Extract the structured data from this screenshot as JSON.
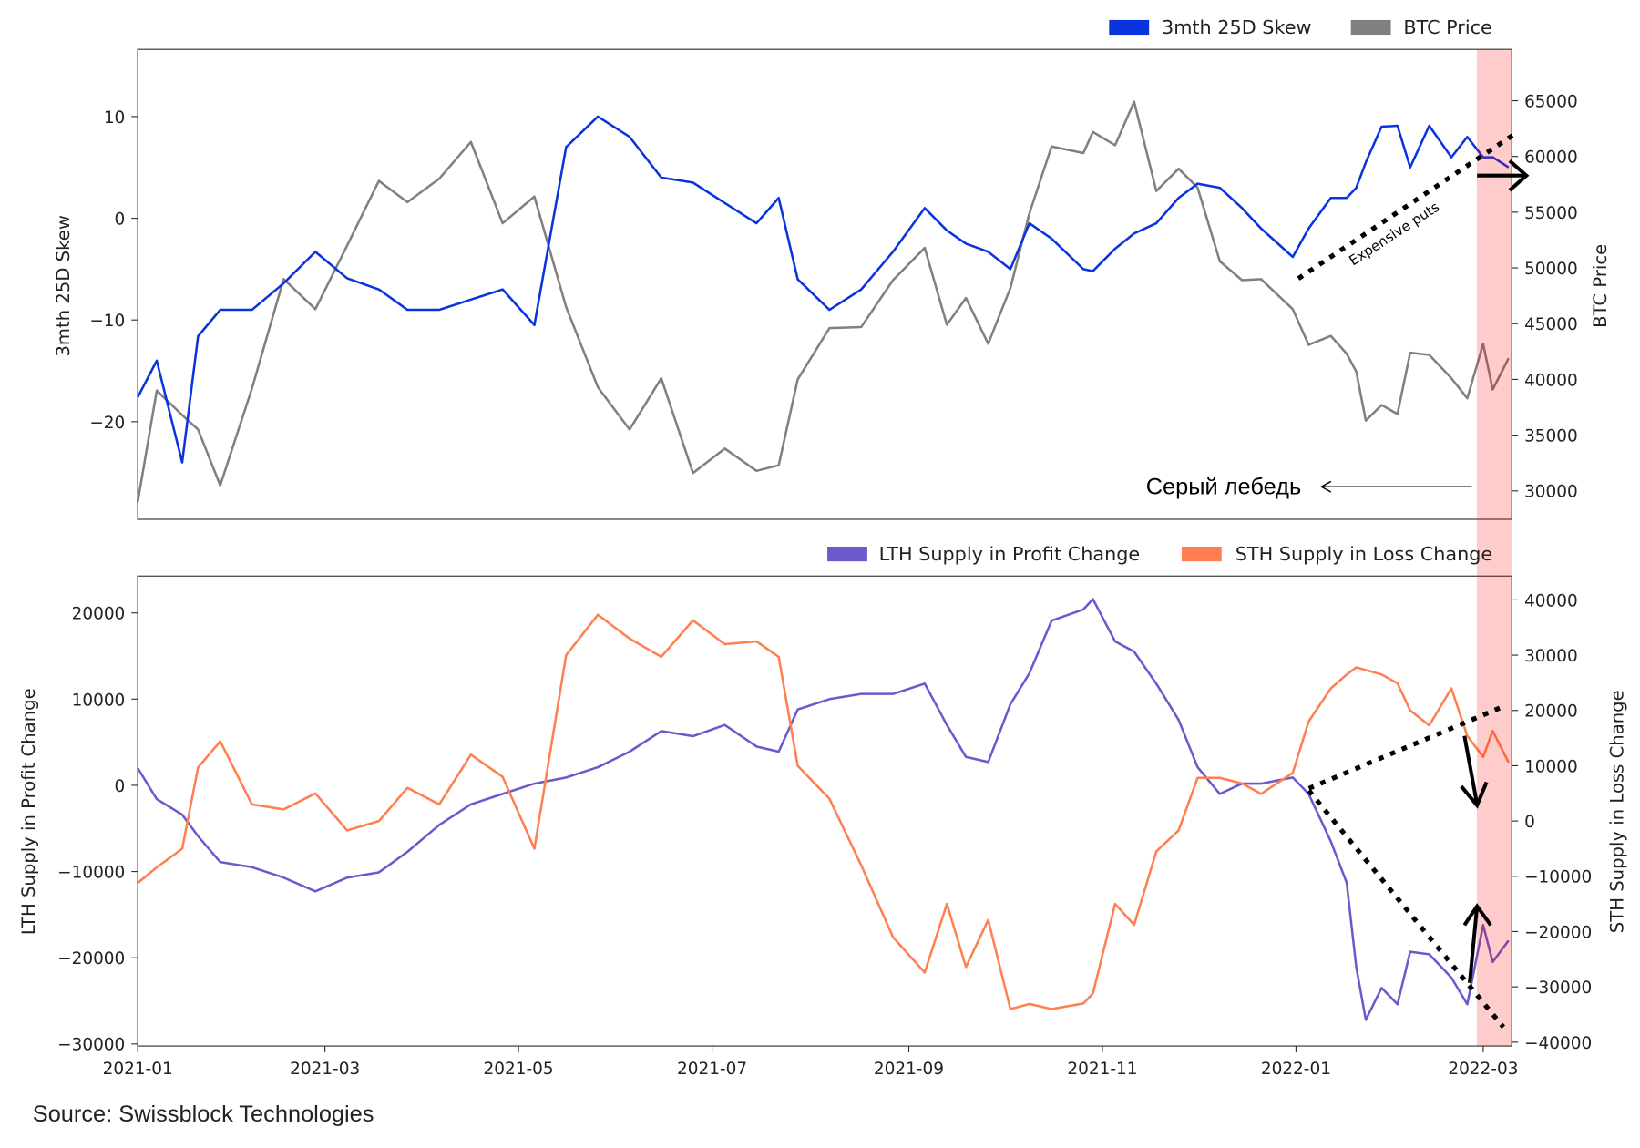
{
  "source": "Source: Swissblock Technologies",
  "colors": {
    "skew": "#0a33e0",
    "btc": "#808080",
    "lth": "#6a5acd",
    "sth": "#ff7f50",
    "band": "#ff0000"
  },
  "x_ticks": [
    "2021-01",
    "2021-03",
    "2021-05",
    "2021-07",
    "2021-09",
    "2021-11",
    "2022-01",
    "2022-03"
  ],
  "x_range": [
    "2021-01-01",
    "2022-03-10"
  ],
  "highlight_band": [
    "2022-02-27",
    "2022-03-10"
  ],
  "annotations": {
    "expensive_puts": "Expensive puts",
    "grey_swan": "Серый лебедь"
  },
  "chart_data": [
    {
      "type": "line",
      "legend": [
        "3mth 25D Skew",
        "BTC Price"
      ],
      "legend_position": "top-right",
      "ylabel": "3mth 25D Skew",
      "ylabel_right": "BTC Price",
      "ylim": [
        -29.6,
        16.6
      ],
      "ylim_right": [
        27450,
        69600
      ],
      "yticks": [
        {
          "v": 10,
          "label": "10"
        },
        {
          "v": 0,
          "label": "0"
        },
        {
          "v": -10,
          "label": "−10"
        },
        {
          "v": -20,
          "label": "−20"
        }
      ],
      "yticks_right": [
        {
          "v": 65000,
          "label": "65000"
        },
        {
          "v": 60000,
          "label": "60000"
        },
        {
          "v": 55000,
          "label": "55000"
        },
        {
          "v": 50000,
          "label": "50000"
        },
        {
          "v": 45000,
          "label": "45000"
        },
        {
          "v": 40000,
          "label": "40000"
        },
        {
          "v": 35000,
          "label": "35000"
        },
        {
          "v": 30000,
          "label": "30000"
        }
      ],
      "grid": false,
      "x": [
        "2021-01-01",
        "2021-01-07",
        "2021-01-15",
        "2021-01-20",
        "2021-01-27",
        "2021-02-06",
        "2021-02-16",
        "2021-02-26",
        "2021-03-08",
        "2021-03-18",
        "2021-03-27",
        "2021-04-06",
        "2021-04-16",
        "2021-04-26",
        "2021-05-06",
        "2021-05-16",
        "2021-05-26",
        "2021-06-05",
        "2021-06-15",
        "2021-06-25",
        "2021-07-05",
        "2021-07-15",
        "2021-07-22",
        "2021-07-28",
        "2021-08-07",
        "2021-08-17",
        "2021-08-27",
        "2021-09-06",
        "2021-09-13",
        "2021-09-19",
        "2021-09-26",
        "2021-10-03",
        "2021-10-09",
        "2021-10-16",
        "2021-10-26",
        "2021-10-29",
        "2021-11-05",
        "2021-11-11",
        "2021-11-18",
        "2021-11-25",
        "2021-12-01",
        "2021-12-08",
        "2021-12-15",
        "2021-12-21",
        "2021-12-31",
        "2022-01-05",
        "2022-01-12",
        "2022-01-17",
        "2022-01-20",
        "2022-01-23",
        "2022-01-28",
        "2022-02-02",
        "2022-02-06",
        "2022-02-12",
        "2022-02-19",
        "2022-02-24",
        "2022-03-01",
        "2022-03-04",
        "2022-03-09"
      ],
      "series": [
        {
          "name": "3mth 25D Skew",
          "axis": "left",
          "values": [
            -17.6,
            -14,
            -24,
            -11.6,
            -9,
            -9,
            -6.4,
            -3.3,
            -5.9,
            -7,
            -9,
            -9,
            -8,
            -7,
            -10.5,
            7,
            10,
            8,
            4,
            3.5,
            1.5,
            -0.5,
            2,
            -6,
            -9,
            -7,
            -3.3,
            1,
            -1.2,
            -2.5,
            -3.3,
            -5,
            -0.5,
            -2,
            -5,
            -5.2,
            -3,
            -1.5,
            -0.5,
            2,
            3.4,
            3,
            1,
            -1,
            -3.8,
            -1,
            2,
            2,
            3,
            5.5,
            9,
            9.1,
            5,
            9.1,
            6,
            8,
            6,
            6,
            5
          ]
        },
        {
          "name": "BTC Price",
          "axis": "right",
          "values": [
            29000,
            39000,
            36800,
            35500,
            30500,
            39200,
            49000,
            46300,
            52000,
            57800,
            55900,
            58000,
            61300,
            54000,
            56400,
            46500,
            39300,
            35500,
            40100,
            31600,
            33800,
            31800,
            32300,
            40000,
            44600,
            44700,
            48900,
            51800,
            44900,
            47300,
            43200,
            48200,
            54900,
            60900,
            60300,
            62200,
            61000,
            64900,
            56900,
            58900,
            57200,
            50600,
            48900,
            49000,
            46300,
            43100,
            43900,
            42300,
            40700,
            36300,
            37700,
            36900,
            42400,
            42200,
            40100,
            38300,
            43200,
            39100,
            41900
          ]
        }
      ]
    },
    {
      "type": "line",
      "legend": [
        "LTH Supply in Profit Change",
        "STH Supply in Loss Change"
      ],
      "legend_position": "top-right",
      "ylabel": "LTH Supply in Profit Change",
      "ylabel_right": "STH Supply in Loss Change",
      "ylim": [
        -30240,
        24270
      ],
      "ylim_right": [
        -40700,
        44300
      ],
      "yticks": [
        {
          "v": 20000,
          "label": "20000"
        },
        {
          "v": 10000,
          "label": "10000"
        },
        {
          "v": 0,
          "label": "0"
        },
        {
          "v": -10000,
          "label": "−10000"
        },
        {
          "v": -20000,
          "label": "−20000"
        },
        {
          "v": -30000,
          "label": "−30000"
        }
      ],
      "yticks_right": [
        {
          "v": 40000,
          "label": "40000"
        },
        {
          "v": 30000,
          "label": "30000"
        },
        {
          "v": 20000,
          "label": "20000"
        },
        {
          "v": 10000,
          "label": "10000"
        },
        {
          "v": 0,
          "label": "0"
        },
        {
          "v": -10000,
          "label": "−10000"
        },
        {
          "v": -20000,
          "label": "−20000"
        },
        {
          "v": -30000,
          "label": "−30000"
        },
        {
          "v": -40000,
          "label": "−40000"
        }
      ],
      "grid": false,
      "x": [
        "2021-01-01",
        "2021-01-07",
        "2021-01-15",
        "2021-01-20",
        "2021-01-27",
        "2021-02-06",
        "2021-02-16",
        "2021-02-26",
        "2021-03-08",
        "2021-03-18",
        "2021-03-27",
        "2021-04-06",
        "2021-04-16",
        "2021-04-26",
        "2021-05-06",
        "2021-05-16",
        "2021-05-26",
        "2021-06-05",
        "2021-06-15",
        "2021-06-25",
        "2021-07-05",
        "2021-07-15",
        "2021-07-22",
        "2021-07-28",
        "2021-08-07",
        "2021-08-17",
        "2021-08-27",
        "2021-09-06",
        "2021-09-13",
        "2021-09-19",
        "2021-09-26",
        "2021-10-03",
        "2021-10-09",
        "2021-10-16",
        "2021-10-26",
        "2021-10-29",
        "2021-11-05",
        "2021-11-11",
        "2021-11-18",
        "2021-11-25",
        "2021-12-01",
        "2021-12-08",
        "2021-12-15",
        "2021-12-21",
        "2021-12-31",
        "2022-01-05",
        "2022-01-12",
        "2022-01-17",
        "2022-01-20",
        "2022-01-23",
        "2022-01-28",
        "2022-02-02",
        "2022-02-06",
        "2022-02-12",
        "2022-02-19",
        "2022-02-24",
        "2022-03-01",
        "2022-03-04",
        "2022-03-09"
      ],
      "series": [
        {
          "name": "LTH Supply in Profit Change",
          "axis": "left",
          "values": [
            2000,
            -1600,
            -3400,
            -5900,
            -8900,
            -9500,
            -10700,
            -12300,
            -10700,
            -10100,
            -7700,
            -4600,
            -2200,
            -1000,
            200,
            900,
            2100,
            3900,
            6300,
            5700,
            7000,
            4500,
            3900,
            8800,
            10000,
            10600,
            10600,
            11800,
            7000,
            3300,
            2700,
            9400,
            13000,
            19100,
            20400,
            21600,
            16700,
            15500,
            11800,
            7600,
            2100,
            -1000,
            200,
            200,
            900,
            -1000,
            -6500,
            -11300,
            -21100,
            -27200,
            -23500,
            -25400,
            -19300,
            -19600,
            -22300,
            -25400,
            -16200,
            -20500,
            -18000
          ]
        },
        {
          "name": "STH Supply in Loss Change",
          "axis": "right",
          "values": [
            -11200,
            -8400,
            -5000,
            9700,
            14400,
            3000,
            2100,
            5000,
            -1700,
            0,
            6000,
            3000,
            12000,
            8000,
            -5000,
            30000,
            37300,
            33000,
            29700,
            36300,
            32000,
            32500,
            29700,
            10000,
            4000,
            -8000,
            -21000,
            -27400,
            -15000,
            -26400,
            -17900,
            -34000,
            -33100,
            -34000,
            -33000,
            -31200,
            -15000,
            -18800,
            -5500,
            -1700,
            7800,
            7800,
            6800,
            4900,
            8700,
            18000,
            24000,
            26500,
            27800,
            27300,
            26500,
            24900,
            20000,
            17300,
            24000,
            15400,
            11600,
            16300,
            10600
          ]
        }
      ]
    }
  ]
}
